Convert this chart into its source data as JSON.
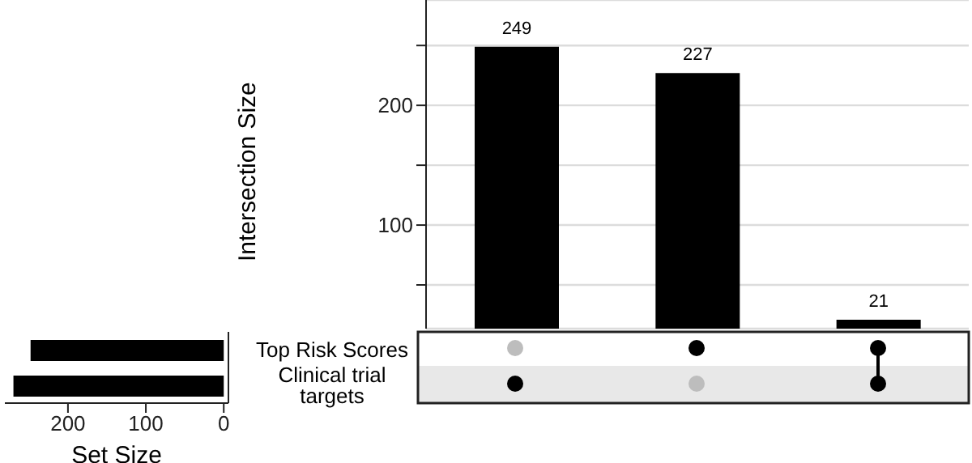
{
  "chart_data": [
    {
      "type": "bar",
      "ylabel": "Intersection Size",
      "categories": [
        null,
        null,
        null
      ],
      "values": [
        249,
        227,
        21
      ],
      "color": "#000000",
      "data_labels": true,
      "ylim": [
        13.5,
        288
      ],
      "yticks": [
        {
          "value": 50,
          "label": null
        },
        100,
        {
          "value": 150,
          "label": null
        },
        200,
        {
          "value": 250,
          "label": null
        }
      ],
      "grid": "y"
    },
    {
      "type": "bar",
      "orientation": "horizontal",
      "xlabel": "Set Size",
      "categories": [
        "Top Risk Scores",
        "Clinical trial targets"
      ],
      "values": [
        248,
        270
      ],
      "color": "#000000",
      "xlim": [
        281,
        -6
      ],
      "xticks": [
        0,
        100,
        200
      ]
    }
  ]
}
